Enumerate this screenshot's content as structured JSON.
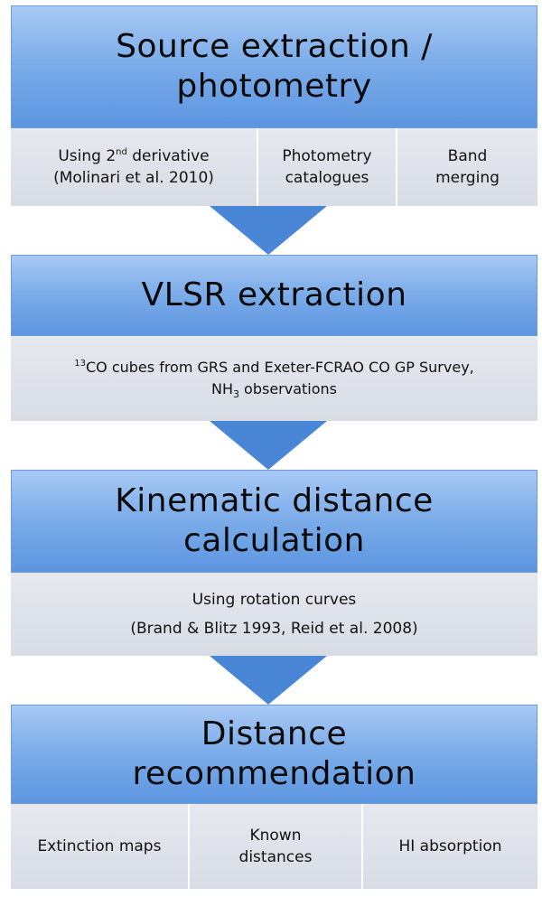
{
  "stage1": {
    "title_line1": "Source extraction /",
    "title_line2": "photometry",
    "cells": [
      {
        "line1_pre": "Using 2",
        "line1_sup": "nd",
        "line1_post": " derivative",
        "line2": "(Molinari et  al. 2010)"
      },
      {
        "line1": "Photometry",
        "line2": "catalogues"
      },
      {
        "line1": "Band",
        "line2": "merging"
      }
    ]
  },
  "stage2": {
    "title": "VLSR extraction",
    "line1_sup": "13",
    "line1_post": "CO cubes from GRS and Exeter-FCRAO CO GP Survey,",
    "line2_pre": "NH",
    "line2_sub": "3",
    "line2_post": " observations"
  },
  "stage3": {
    "title_line1": "Kinematic distance",
    "title_line2": "calculation",
    "line1": "Using rotation curves",
    "line2": "(Brand & Blitz 1993, Reid et al. 2008)"
  },
  "stage4": {
    "title_line1": "Distance",
    "title_line2": "recommendation",
    "cells": [
      {
        "line1": "Extinction maps"
      },
      {
        "line1": "Known",
        "line2": "distances"
      },
      {
        "line1": "HI absorption"
      }
    ]
  },
  "colors": {
    "header": "#7eaeea",
    "arrow": "#4a86d6",
    "detail": "#dfe2e8"
  }
}
